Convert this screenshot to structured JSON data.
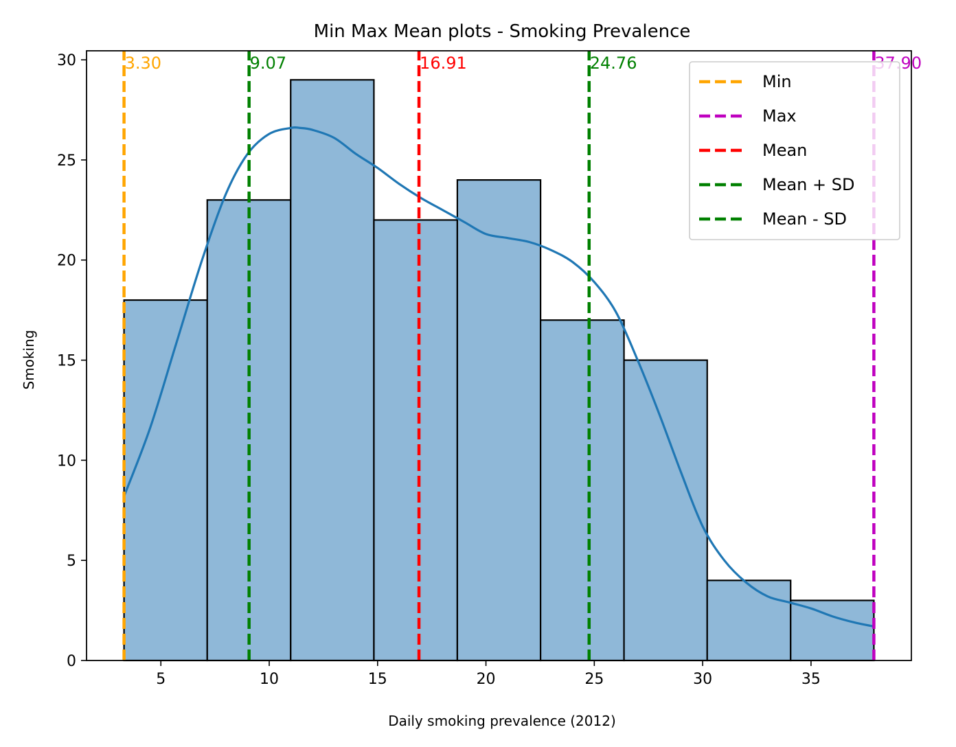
{
  "chart_data": {
    "type": "histogram",
    "title": "Min Max Mean plots - Smoking Prevalence",
    "xlabel": "Daily smoking prevalence (2012)",
    "ylabel": "Smoking",
    "xlim": [
      1.57,
      39.63
    ],
    "ylim": [
      0,
      30.45
    ],
    "x_ticks": [
      5,
      10,
      15,
      20,
      25,
      30,
      35
    ],
    "y_ticks": [
      0,
      5,
      10,
      15,
      20,
      25,
      30
    ],
    "bins": [
      {
        "x0": 3.3,
        "x1": 7.14,
        "count": 18
      },
      {
        "x0": 7.14,
        "x1": 10.99,
        "count": 23
      },
      {
        "x0": 10.99,
        "x1": 14.83,
        "count": 29
      },
      {
        "x0": 14.83,
        "x1": 18.68,
        "count": 22
      },
      {
        "x0": 18.68,
        "x1": 22.52,
        "count": 24
      },
      {
        "x0": 22.52,
        "x1": 26.37,
        "count": 17
      },
      {
        "x0": 26.37,
        "x1": 30.21,
        "count": 15
      },
      {
        "x0": 30.21,
        "x1": 34.06,
        "count": 4
      },
      {
        "x0": 34.06,
        "x1": 37.9,
        "count": 3
      }
    ],
    "kde": {
      "x": [
        3.3,
        4.5,
        5.7,
        6.9,
        8.0,
        9.0,
        10.0,
        11.0,
        11.4,
        12.0,
        13.0,
        14.0,
        15.0,
        16.0,
        17.0,
        18.0,
        19.0,
        20.0,
        21.0,
        22.0,
        23.0,
        24.0,
        25.0,
        26.0,
        27.0,
        28.0,
        29.0,
        30.0,
        31.0,
        32.0,
        33.0,
        34.0,
        35.0,
        36.0,
        37.0,
        37.9
      ],
      "y": [
        8.2,
        11.6,
        15.8,
        20.0,
        23.3,
        25.3,
        26.3,
        26.6,
        26.6,
        26.5,
        26.1,
        25.3,
        24.6,
        23.8,
        23.1,
        22.5,
        21.9,
        21.3,
        21.1,
        20.9,
        20.5,
        19.9,
        18.9,
        17.4,
        15.0,
        12.3,
        9.4,
        6.7,
        5.0,
        3.9,
        3.2,
        2.9,
        2.6,
        2.2,
        1.9,
        1.7
      ]
    },
    "vlines": [
      {
        "name": "Min",
        "value": 3.3,
        "label": "3.30",
        "color": "#FFA500"
      },
      {
        "name": "Max",
        "value": 37.9,
        "label": "37.90",
        "color": "#BF00BF"
      },
      {
        "name": "Mean",
        "value": 16.91,
        "label": "16.91",
        "color": "#FF0000"
      },
      {
        "name": "Mean + SD",
        "value": 24.76,
        "label": "24.76",
        "color": "#008000"
      },
      {
        "name": "Mean - SD",
        "value": 9.07,
        "label": "9.07",
        "color": "#008000"
      }
    ],
    "bar_color": "#8FB8D8",
    "kde_color": "#1F77B4",
    "legend_position": "top-right",
    "grid": false
  }
}
